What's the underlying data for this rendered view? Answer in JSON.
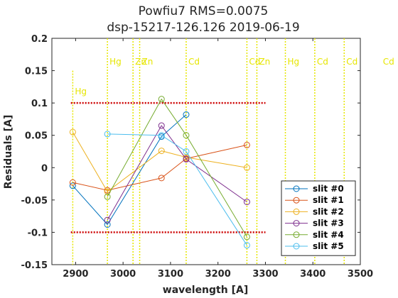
{
  "chart_data": {
    "type": "line",
    "title": [
      "Powfiu7 RMS=0.0075",
      "dsp-15217-126.126  2019-06-19"
    ],
    "xlabel": "wavelength [A]",
    "ylabel": "Residuals  [A]",
    "xlim": [
      2850,
      3500
    ],
    "ylim": [
      -0.15,
      0.2
    ],
    "xticks": [
      2900,
      3000,
      3100,
      3200,
      3300,
      3400,
      3500
    ],
    "yticks": [
      -0.15,
      -0.1,
      -0.05,
      0,
      0.05,
      0.1,
      0.15,
      0.2
    ],
    "ytick_labels": [
      "-0.15",
      "-0.1",
      "-0.05",
      "0",
      "0.05",
      "0.1",
      "0.15",
      "0.2"
    ],
    "grid": false,
    "legend_position": "bottom-right",
    "threshold_lines": [
      0.1,
      -0.1
    ],
    "threshold_color": "#cc0000",
    "line_color": "#e6e600",
    "lamp_lines": [
      {
        "x": 2894,
        "label": "Hg",
        "label_level": "low"
      },
      {
        "x": 2967,
        "label": "Hg",
        "label_level": "high"
      },
      {
        "x": 3021,
        "label": "Zn",
        "label_level": "high"
      },
      {
        "x": 3035,
        "label": "Zn",
        "label_level": "high"
      },
      {
        "x": 3133,
        "label": "Cd",
        "label_level": "high"
      },
      {
        "x": 3261,
        "label": "Cd",
        "label_level": "high"
      },
      {
        "x": 3282,
        "label": "Zn",
        "label_level": "high"
      },
      {
        "x": 3342,
        "label": "Hg",
        "label_level": "high"
      },
      {
        "x": 3404,
        "label": "Cd",
        "label_level": "high"
      },
      {
        "x": 3466,
        "label": "Cd",
        "label_level": "high"
      },
      {
        "x": 3543,
        "label": "Cd",
        "label_level": "high"
      }
    ],
    "series": [
      {
        "name": "slit #0",
        "color": "#0072bd",
        "x": [
          2894,
          2967,
          3081,
          3133
        ],
        "y": [
          -0.028,
          -0.088,
          0.048,
          0.082
        ]
      },
      {
        "name": "slit #1",
        "color": "#d95319",
        "x": [
          2894,
          2967,
          3081,
          3133,
          3261
        ],
        "y": [
          -0.023,
          -0.035,
          -0.016,
          0.014,
          0.035
        ]
      },
      {
        "name": "slit #2",
        "color": "#edb120",
        "x": [
          2894,
          2967,
          3081,
          3133,
          3261
        ],
        "y": [
          0.055,
          -0.037,
          0.026,
          0.016,
          0.0
        ]
      },
      {
        "name": "slit #3",
        "color": "#7e2f8e",
        "x": [
          2967,
          3081,
          3133,
          3261
        ],
        "y": [
          -0.081,
          0.065,
          0.013,
          -0.053
        ]
      },
      {
        "name": "slit #4",
        "color": "#77ac30",
        "x": [
          2967,
          3081,
          3133,
          3261
        ],
        "y": [
          -0.045,
          0.106,
          0.05,
          -0.107
        ]
      },
      {
        "name": "slit #5",
        "color": "#4dbeee",
        "x": [
          2967,
          3081,
          3133,
          3261
        ],
        "y": [
          0.052,
          0.05,
          0.025,
          -0.12
        ]
      }
    ]
  }
}
